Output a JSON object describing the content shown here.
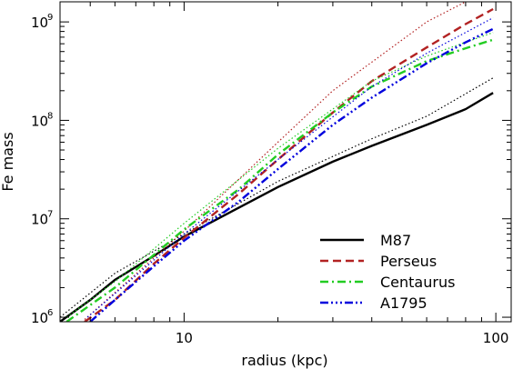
{
  "chart_data": {
    "type": "line",
    "xlabel": "radius (kpc)",
    "ylabel": "Fe mass",
    "xscale": "log",
    "yscale": "log",
    "xlim": [
      4,
      112
    ],
    "ylim": [
      900000,
      1600000000
    ],
    "xticks": [
      {
        "value": 10,
        "label": "10"
      },
      {
        "value": 100,
        "label": "100"
      }
    ],
    "yticks": [
      {
        "value": 1000000,
        "base": "10",
        "exp": "6"
      },
      {
        "value": 10000000,
        "base": "10",
        "exp": "7"
      },
      {
        "value": 100000000,
        "base": "10",
        "exp": "8"
      },
      {
        "value": 1000000000,
        "base": "10",
        "exp": "9"
      }
    ],
    "legend_position": "lower-right",
    "series": [
      {
        "name": "M87",
        "color": "#000000",
        "dash": "solid",
        "points": [
          [
            4,
            900000
          ],
          [
            5,
            1500000
          ],
          [
            6,
            2400000
          ],
          [
            8,
            4200000
          ],
          [
            10,
            6600000
          ],
          [
            15,
            13000000
          ],
          [
            20,
            21000000
          ],
          [
            30,
            38000000
          ],
          [
            40,
            55000000
          ],
          [
            60,
            90000000
          ],
          [
            80,
            130000000
          ],
          [
            98,
            190000000
          ]
        ],
        "bounds": [
          {
            "points": [
              [
                4,
                1000000
              ],
              [
                6,
                2800000
              ],
              [
                10,
                7000000
              ],
              [
                20,
                24000000
              ],
              [
                40,
                65000000
              ],
              [
                60,
                110000000
              ],
              [
                98,
                270000000
              ]
            ]
          }
        ]
      },
      {
        "name": "Perseus",
        "color": "#b22222",
        "dash": "dashed",
        "points": [
          [
            4.8,
            900000
          ],
          [
            6,
            1500000
          ],
          [
            8,
            3500000
          ],
          [
            10,
            6400000
          ],
          [
            15,
            18000000
          ],
          [
            20,
            40000000
          ],
          [
            30,
            120000000
          ],
          [
            40,
            250000000
          ],
          [
            60,
            550000000
          ],
          [
            80,
            950000000
          ],
          [
            98,
            1350000000
          ]
        ],
        "bounds": [
          {
            "points": [
              [
                4.8,
                950000
              ],
              [
                8,
                4000000
              ],
              [
                10,
                7500000
              ],
              [
                20,
                60000000
              ],
              [
                30,
                200000000
              ],
              [
                60,
                1000000000
              ],
              [
                80,
                1600000000
              ]
            ]
          }
        ]
      },
      {
        "name": "Centaurus",
        "color": "#22cc22",
        "dash": "dashdot",
        "points": [
          [
            4.2,
            900000
          ],
          [
            6,
            2000000
          ],
          [
            8,
            4300000
          ],
          [
            10,
            7800000
          ],
          [
            15,
            20000000
          ],
          [
            20,
            45000000
          ],
          [
            30,
            120000000
          ],
          [
            40,
            220000000
          ],
          [
            60,
            400000000
          ],
          [
            80,
            540000000
          ],
          [
            98,
            660000000
          ]
        ],
        "bounds": [
          {
            "points": [
              [
                4.2,
                1000000
              ],
              [
                6,
                2300000
              ],
              [
                10,
                9000000
              ],
              [
                20,
                52000000
              ],
              [
                40,
                250000000
              ],
              [
                60,
                450000000
              ],
              [
                98,
                780000000
              ]
            ]
          }
        ]
      },
      {
        "name": "A1795",
        "color": "#0000dd",
        "dash": "dashdotdotdot",
        "points": [
          [
            5,
            900000
          ],
          [
            6,
            1500000
          ],
          [
            8,
            3300000
          ],
          [
            10,
            6000000
          ],
          [
            15,
            15000000
          ],
          [
            20,
            32000000
          ],
          [
            30,
            90000000
          ],
          [
            40,
            170000000
          ],
          [
            60,
            380000000
          ],
          [
            80,
            620000000
          ],
          [
            98,
            850000000
          ]
        ],
        "bounds": [
          {
            "points": [
              [
                4.9,
                1000000
              ],
              [
                8,
                3800000
              ],
              [
                10,
                7000000
              ],
              [
                20,
                40000000
              ],
              [
                40,
                220000000
              ],
              [
                60,
                480000000
              ],
              [
                98,
                1100000000
              ]
            ]
          }
        ]
      }
    ]
  }
}
